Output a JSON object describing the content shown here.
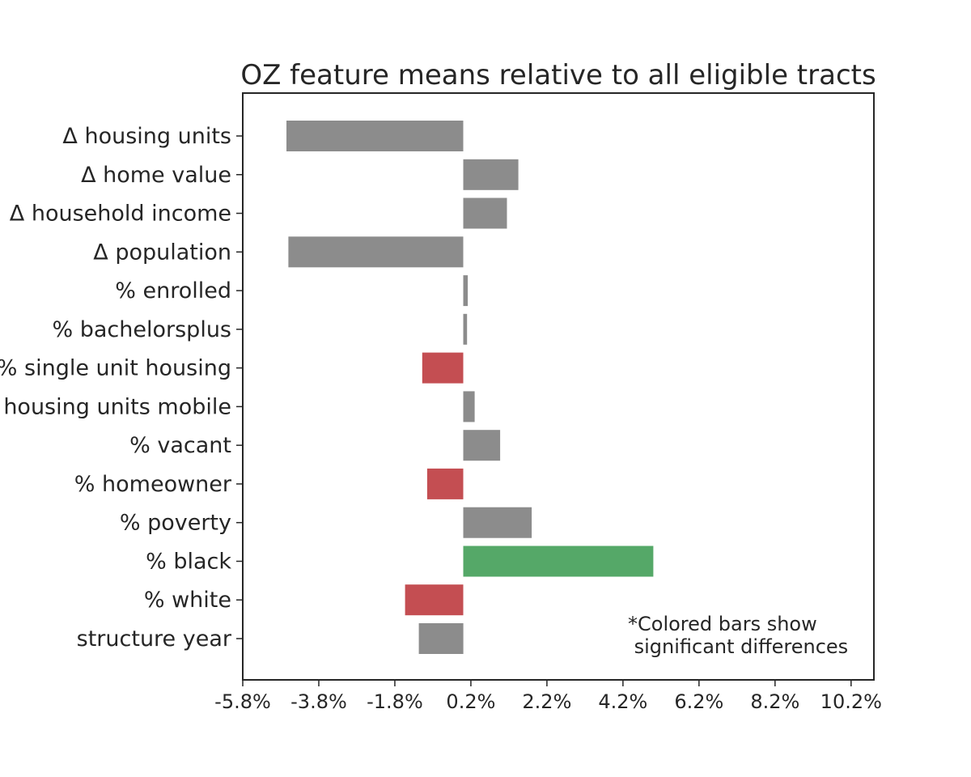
{
  "chart_data": {
    "type": "bar",
    "orientation": "horizontal",
    "title": "OZ feature means relative to all eligible tracts",
    "xlabel": "",
    "ylabel": "",
    "xlim": [
      -5.8,
      10.8
    ],
    "xticks": [
      "-5.8%",
      "-3.8%",
      "-1.8%",
      "0.2%",
      "2.2%",
      "4.2%",
      "6.2%",
      "8.2%",
      "10.2%"
    ],
    "xtick_values": [
      -5.8,
      -3.8,
      -1.8,
      0.2,
      2.2,
      4.2,
      6.2,
      8.2,
      10.2
    ],
    "grid": false,
    "categories": [
      "Δ housing units",
      "Δ home value",
      "Δ household income",
      "Δ population",
      "% enrolled",
      "% bachelorsplus",
      "% single unit housing",
      "housing units mobile",
      "%  vacant",
      "%  homeowner",
      "% poverty",
      "%  black",
      "%  white",
      "structure year"
    ],
    "values": [
      -4.65,
      1.45,
      1.15,
      -4.6,
      0.12,
      0.1,
      -1.08,
      0.3,
      0.97,
      -0.95,
      1.8,
      5.0,
      -1.53,
      -1.17
    ],
    "colors": [
      "#8c8c8c",
      "#8c8c8c",
      "#8c8c8c",
      "#8c8c8c",
      "#8c8c8c",
      "#8c8c8c",
      "#c44e52",
      "#8c8c8c",
      "#8c8c8c",
      "#c44e52",
      "#8c8c8c",
      "#55a868",
      "#c44e52",
      "#8c8c8c"
    ],
    "annotation": [
      "*Colored bars show",
      " significant differences"
    ]
  }
}
